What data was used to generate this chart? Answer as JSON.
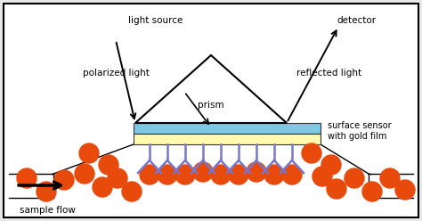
{
  "bg_color": "#e8e8e8",
  "box_facecolor": "white",
  "prism_color": "black",
  "blue_layer_color": "#7EC8E3",
  "gold_layer_color": "#FFFAB0",
  "antibody_color": "#7777CC",
  "analyte_color": "#E84A0C",
  "text_color": "black",
  "labels": {
    "light_source": "light source",
    "polarized_light": "polarized light",
    "detector": "detector",
    "reflected_light": "reflected light",
    "prism": "prism",
    "surface_sensor": "surface sensor\nwith gold film",
    "sample_flow": "sample flow"
  },
  "figsize": [
    4.74,
    2.48
  ],
  "dpi": 100
}
